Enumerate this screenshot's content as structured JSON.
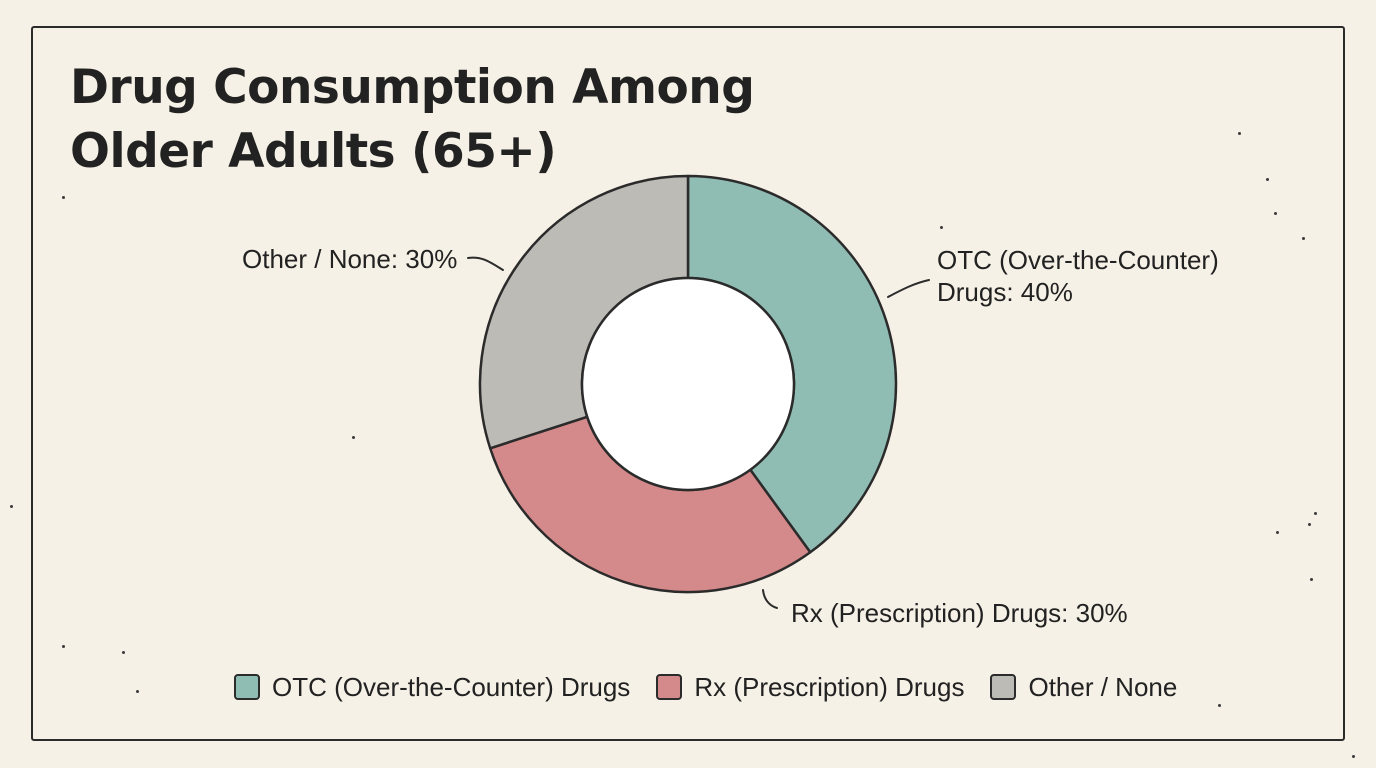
{
  "chart_data": {
    "type": "pie",
    "donut": true,
    "title": [
      "Drug Consumption Among",
      "Older Adults (65+)"
    ],
    "categories": [
      "OTC (Over-the-Counter) Drugs",
      "Rx (Prescription) Drugs",
      "Other / None"
    ],
    "values": [
      40,
      30,
      30
    ],
    "unit": "%",
    "colors": [
      "#8fbcb3",
      "#d4898a",
      "#bdbbb6"
    ],
    "slice_labels": {
      "otc": [
        "OTC (Over-the-Counter)",
        "Drugs: 40%"
      ],
      "rx": "Rx (Prescription) Drugs: 30%",
      "other": "Other / None: 30%"
    },
    "legend": {
      "placement": "bottom",
      "items": [
        {
          "label": "OTC (Over-the-Counter) Drugs",
          "color": "#8fbcb3"
        },
        {
          "label": "Rx (Prescription) Drugs",
          "color": "#d4898a"
        },
        {
          "label": "Other / None",
          "color": "#bdbbb6"
        }
      ]
    }
  }
}
